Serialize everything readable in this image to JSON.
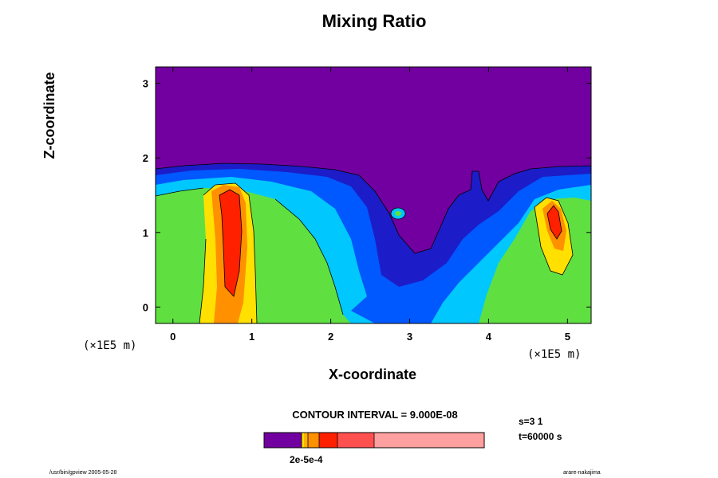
{
  "chart_data": {
    "type": "contour",
    "title": "Mixing Ratio",
    "xlabel": "X-coordinate",
    "ylabel": "Z-coordinate",
    "x_unit": "(×1E5 m)",
    "x_unit_right": "(×1E5 m)",
    "xlim": [
      -0.22,
      5.3
    ],
    "ylim": [
      -0.22,
      3.22
    ],
    "x_ticks": [
      "0",
      "1",
      "2",
      "3",
      "4",
      "5"
    ],
    "x_tick_values": [
      0,
      1,
      2,
      3,
      4,
      5
    ],
    "y_ticks": [
      "0",
      "1",
      "2",
      "3"
    ],
    "y_tick_values": [
      0,
      1,
      2,
      3
    ],
    "contour_interval": "CONTOUR INTERVAL = 9.000E-08",
    "colorbar_label": "2e-5e-4",
    "colors": {
      "background_level": "#7200a0",
      "dark_blue": "#1c1cc8",
      "blue": "#0058ff",
      "cyan": "#00c8ff",
      "green": "#60e040",
      "yellow": "#ffe000",
      "orange": "#ff9000",
      "red": "#ff2000",
      "light_red": "#ff5050",
      "pink": "#ffa0a0"
    }
  },
  "info": {
    "step": "s=3 1",
    "time": "t=60000 s",
    "footer_left": "/usr/bin/gpview 2005-05-28",
    "footer_right": "arare-nakajima"
  }
}
